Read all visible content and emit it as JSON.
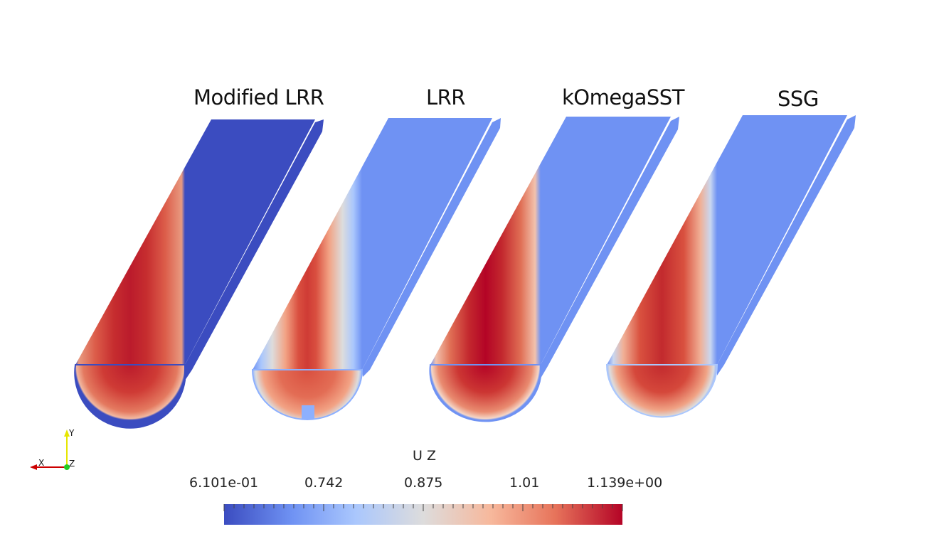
{
  "cases": [
    {
      "title": "Modified LRR"
    },
    {
      "title": "LRR"
    },
    {
      "title": "kOmegaSST"
    },
    {
      "title": "SSG"
    }
  ],
  "colorbar": {
    "title": "U Z",
    "tick_labels": [
      "6.101e-01",
      "0.742",
      "0.875",
      "1.01",
      "1.139e+00"
    ],
    "range": [
      0.6101,
      1.139
    ],
    "colormap": [
      "#3b4cc0",
      "#6f92f3",
      "#aac7fd",
      "#dddcdc",
      "#f7b89c",
      "#e7745b",
      "#b40426"
    ]
  },
  "orientation_axes": {
    "y_label": "Y",
    "x_label": "X",
    "z_label": "Z"
  }
}
